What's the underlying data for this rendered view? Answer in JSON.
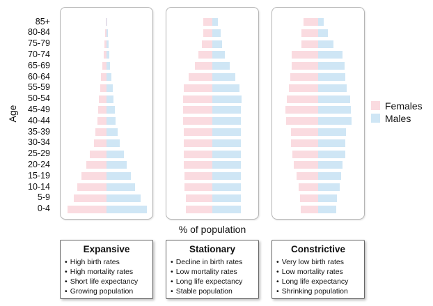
{
  "chart_data": {
    "type": "bar",
    "subtype": "population-pyramid",
    "ylabel": "Age",
    "xlabel": "% of population",
    "age_groups": [
      "0-4",
      "5-9",
      "10-14",
      "15-19",
      "20-24",
      "25-29",
      "30-34",
      "35-39",
      "40-44",
      "45-49",
      "50-54",
      "55-59",
      "60-64",
      "65-69",
      "70-74",
      "75-79",
      "80-84",
      "85+"
    ],
    "legend": [
      {
        "name": "Females",
        "color": "#fadbe0"
      },
      {
        "name": "Males",
        "color": "#cfe6f5"
      }
    ],
    "legend_placement": "right",
    "grid": false,
    "pyramids": [
      {
        "title": "Expansive",
        "females": [
          56,
          47,
          42,
          36,
          29,
          24,
          18,
          16,
          13,
          12,
          11,
          9,
          8,
          6,
          4,
          3,
          2,
          1
        ],
        "males": [
          58,
          49,
          41,
          35,
          29,
          25,
          19,
          16,
          13,
          12,
          10,
          9,
          7,
          5,
          4,
          3,
          2,
          1
        ],
        "bullets": [
          "High birth rates",
          "High mortality rates",
          "Short life expectancy",
          "Growing population"
        ]
      },
      {
        "title": "Stationary",
        "females": [
          38,
          38,
          40,
          40,
          41,
          41,
          41,
          41,
          42,
          42,
          42,
          41,
          34,
          25,
          20,
          15,
          13,
          13
        ],
        "males": [
          41,
          41,
          41,
          41,
          41,
          41,
          41,
          41,
          41,
          41,
          42,
          39,
          33,
          25,
          18,
          14,
          12,
          8
        ],
        "bullets": [
          "Decline in birth rates",
          "Low mortality rates",
          "Long life expectancy",
          "Stable population"
        ]
      },
      {
        "title": "Constrictive",
        "females": [
          25,
          26,
          28,
          31,
          35,
          37,
          39,
          39,
          46,
          47,
          45,
          42,
          40,
          38,
          38,
          24,
          24,
          21
        ],
        "males": [
          26,
          27,
          31,
          33,
          35,
          39,
          39,
          40,
          48,
          47,
          46,
          41,
          39,
          38,
          35,
          22,
          14,
          8
        ],
        "bullets": [
          "Very low birth rates",
          "Low mortality rates",
          "Long life expectancy",
          "Shrinking population"
        ]
      }
    ]
  }
}
